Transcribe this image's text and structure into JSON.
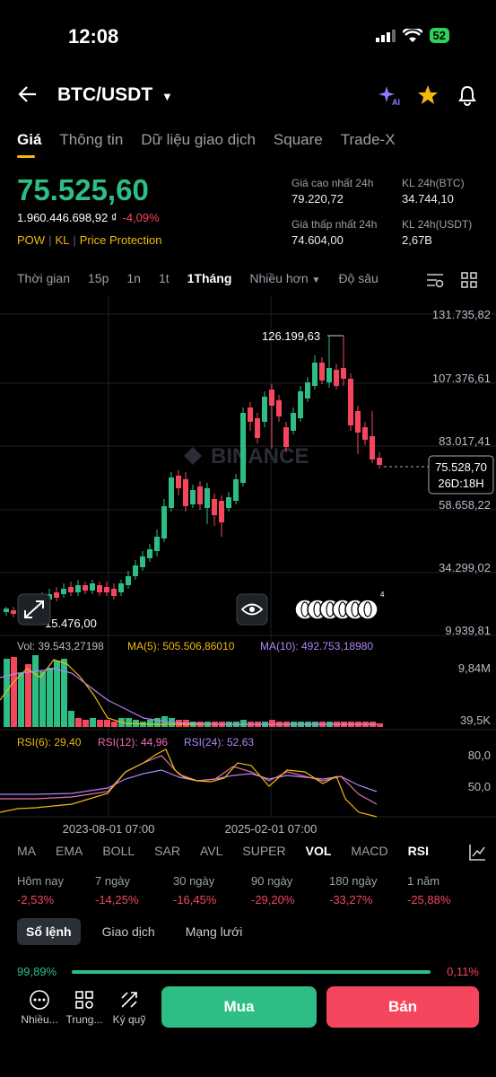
{
  "status": {
    "time": "12:08",
    "battery": "52"
  },
  "header": {
    "pair": "BTC/USDT"
  },
  "tabs": [
    "Giá",
    "Thông tin",
    "Dữ liệu giao dịch",
    "Square",
    "Trade-X"
  ],
  "price": {
    "last": "75.525,60",
    "fiat": "1.960.446.698,92 ₫",
    "change": "-4,09%",
    "tags": [
      "POW",
      "KL",
      "Price Protection"
    ]
  },
  "stats": {
    "high_label": "Giá cao nhất 24h",
    "high": "79.220,72",
    "vol_btc_label": "KL 24h(BTC)",
    "vol_btc": "34.744,10",
    "low_label": "Giá thấp nhất 24h",
    "low": "74.604,00",
    "vol_usdt_label": "KL 24h(USDT)",
    "vol_usdt": "2,67B"
  },
  "timebar": [
    "Thời gian",
    "15p",
    "1n",
    "1t",
    "1Tháng",
    "Nhiều hơn",
    "Độ sâu"
  ],
  "chart": {
    "axis": [
      "131.735,82",
      "107.376,61",
      "83.017,41",
      "58.658,22",
      "34.299,02",
      "9.939,81"
    ],
    "max_label": "126.199,63",
    "min_label": "15.476,00",
    "current_price": "75.528,70",
    "countdown": "26D:18H",
    "watermark": "BINANCE",
    "notif_count": "4"
  },
  "volume": {
    "label": "Vol: 39.543,27198",
    "ma5": "MA(5): 505.506,86010",
    "ma10": "MA(10): 492.753,18980",
    "axis_top": "9,84M",
    "axis_bottom": "39,5K"
  },
  "rsi": {
    "rsi6": "RSI(6): 29,40",
    "rsi12": "RSI(12): 44,96",
    "rsi24": "RSI(24): 52,63",
    "axis_top": "80,0",
    "axis_mid": "50,0"
  },
  "dates": [
    "2023-08-01 07:00",
    "2025-02-01 07:00"
  ],
  "indicators": [
    "MA",
    "EMA",
    "BOLL",
    "SAR",
    "AVL",
    "SUPER",
    "VOL",
    "MACD",
    "RSI"
  ],
  "performance": [
    {
      "label": "Hôm nay",
      "value": "-2,53%"
    },
    {
      "label": "7 ngày",
      "value": "-14,25%"
    },
    {
      "label": "30 ngày",
      "value": "-16,45%"
    },
    {
      "label": "90 ngày",
      "value": "-29,20%"
    },
    {
      "label": "180 ngày",
      "value": "-33,27%"
    },
    {
      "label": "1 năm",
      "value": "-25,88%"
    }
  ],
  "book_tabs": [
    "Sổ lệnh",
    "Giao dịch",
    "Mạng lưới"
  ],
  "ratio": {
    "buy": "99,89%",
    "sell": "0,11%"
  },
  "bottom_nav": [
    "Nhiều...",
    "Trung...",
    "Ký quỹ"
  ],
  "actions": {
    "buy": "Mua",
    "sell": "Bán"
  },
  "colors": {
    "up": "#2ebd85",
    "down": "#f6465d",
    "accent": "#f0b90b"
  }
}
